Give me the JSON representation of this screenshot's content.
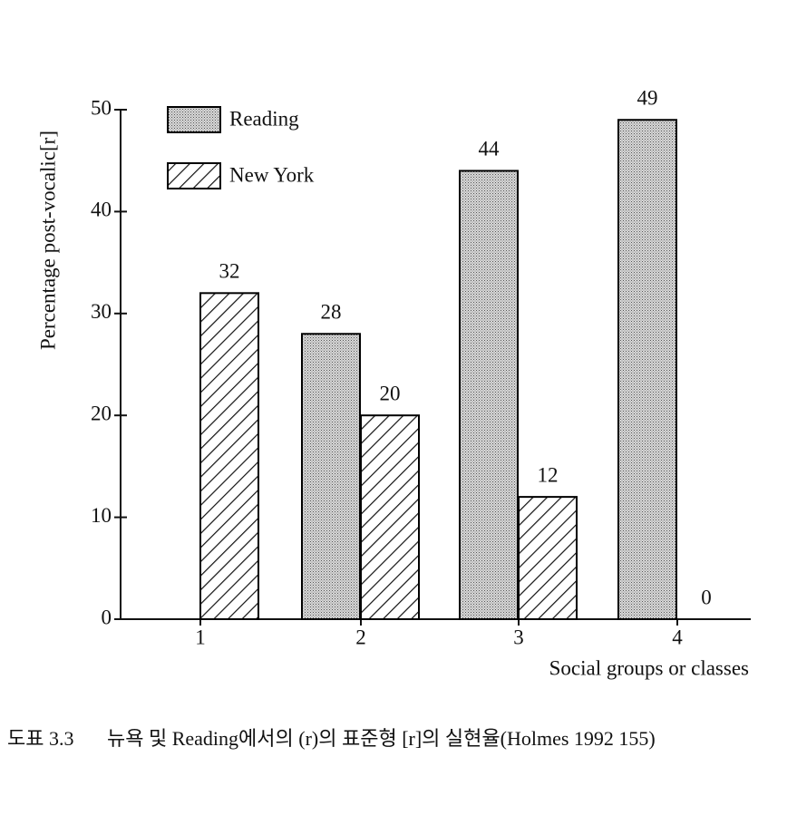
{
  "chart_data": {
    "type": "bar",
    "y_label": "Percentage post-vocalic[r]",
    "x_label": "Social groups or classes",
    "categories": [
      "1",
      "2",
      "3",
      "4"
    ],
    "series": [
      {
        "name": "Reading",
        "pattern": "dots",
        "color": "#000000",
        "values": [
          null,
          28,
          44,
          49
        ]
      },
      {
        "name": "New York",
        "pattern": "hatch",
        "color": "#000000",
        "values": [
          32,
          20,
          12,
          0
        ]
      }
    ],
    "ylim": [
      0,
      50
    ],
    "yticks": [
      0,
      10,
      20,
      30,
      40,
      50
    ],
    "grid": false,
    "legend": "top-left"
  },
  "caption": {
    "label": "도표 3.3",
    "text": "뉴욕 및 Reading에서의 (r)의 표준형 [r]의 실현율(Holmes 1992 155)"
  }
}
